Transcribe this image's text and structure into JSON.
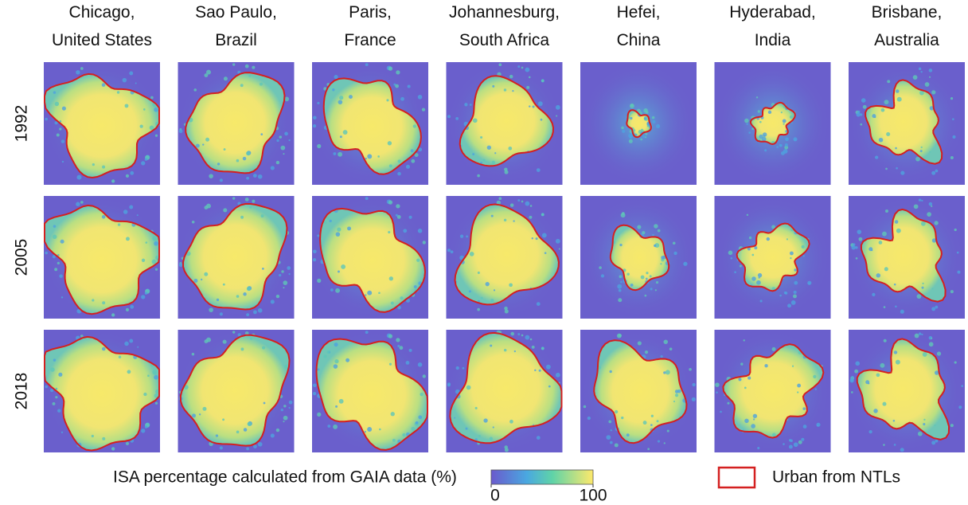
{
  "columns": [
    {
      "line1": "Chicago,",
      "line2": "United States"
    },
    {
      "line1": "Sao Paulo,",
      "line2": "Brazil"
    },
    {
      "line1": "Paris,",
      "line2": "France"
    },
    {
      "line1": "Johannesburg,",
      "line2": "South Africa"
    },
    {
      "line1": "Hefei,",
      "line2": "China"
    },
    {
      "line1": "Hyderabad,",
      "line2": "India"
    },
    {
      "line1": "Brisbane,",
      "line2": "Australia"
    }
  ],
  "rows": [
    "1992",
    "2005",
    "2018"
  ],
  "legend": {
    "colorbar_label": "ISA percentage calculated from GAIA data (%)",
    "colorbar_lim": [
      0,
      100
    ],
    "colorbar_ticks": [
      0,
      100
    ],
    "outline_label": "Urban from NTLs"
  }
}
